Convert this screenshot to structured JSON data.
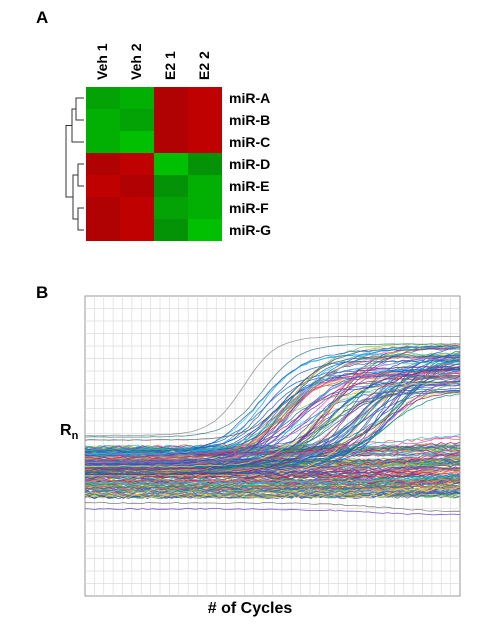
{
  "panels": {
    "a_label": "A",
    "b_label": "B"
  },
  "chart_data": [
    {
      "type": "heatmap",
      "columns": [
        "Veh 1",
        "Veh 2",
        "E2 1",
        "E2 2"
      ],
      "rows": [
        "miR-A",
        "miR-B",
        "miR-C",
        "miR-D",
        "miR-E",
        "miR-F",
        "miR-G"
      ],
      "values": [
        [
          -0.7,
          -0.8,
          0.8,
          0.9
        ],
        [
          -0.8,
          -0.7,
          0.8,
          0.9
        ],
        [
          -0.8,
          -0.9,
          0.8,
          0.9
        ],
        [
          0.8,
          0.9,
          -0.9,
          -0.6
        ],
        [
          0.9,
          0.8,
          -0.6,
          -0.8
        ],
        [
          0.8,
          0.9,
          -0.7,
          -0.8
        ],
        [
          0.8,
          0.9,
          -0.6,
          -0.9
        ]
      ],
      "colors": {
        "low": "#00cc00",
        "high": "#cc0000"
      },
      "dendrogram": "rows",
      "legend": "none"
    },
    {
      "type": "line",
      "xlabel": "# of Cycles",
      "ylabel": "Rn",
      "ylabel_main": "R",
      "ylabel_sub": "n",
      "x_range": [
        1,
        40
      ],
      "grid": true,
      "series_description": "many amplification curves (qPCR), flat baseline then sigmoidal rise for a subset",
      "legend": "none"
    }
  ]
}
